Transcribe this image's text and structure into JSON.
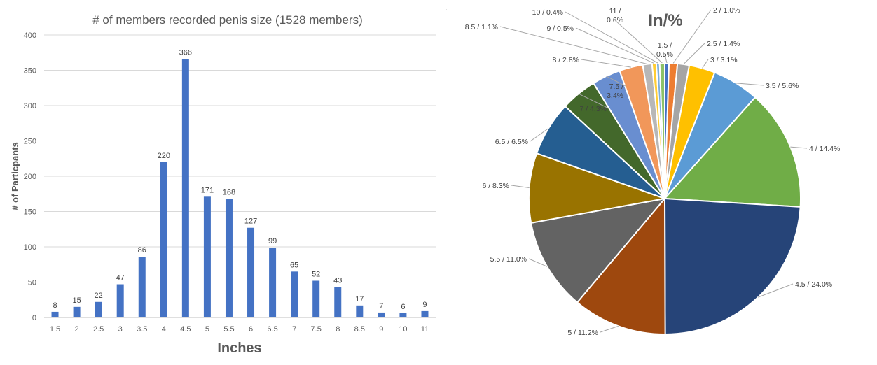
{
  "chart_data": [
    {
      "type": "bar",
      "title": "# of members recorded penis size (1528 members)",
      "xlabel": "Inches",
      "ylabel": "# of Particpants",
      "ylim": [
        0,
        400
      ],
      "yticks": [
        0,
        50,
        100,
        150,
        200,
        250,
        300,
        350,
        400
      ],
      "grid": true,
      "bar_color": "#4472c4",
      "categories": [
        "1.5",
        "2",
        "2.5",
        "3",
        "3.5",
        "4",
        "4.5",
        "5",
        "5.5",
        "6",
        "6.5",
        "7",
        "7.5",
        "8",
        "8.5",
        "9",
        "10",
        "11"
      ],
      "values": [
        8,
        15,
        22,
        47,
        86,
        220,
        366,
        171,
        168,
        127,
        99,
        65,
        52,
        43,
        17,
        7,
        6,
        9
      ],
      "data_labels": true
    },
    {
      "type": "pie",
      "title": "In/%",
      "categories": [
        "1.5",
        "2",
        "2.5",
        "3",
        "3.5",
        "4",
        "4.5",
        "5",
        "5.5",
        "6",
        "6.5",
        "7",
        "7.5",
        "8",
        "8.5",
        "9",
        "10",
        "11"
      ],
      "values": [
        0.5,
        1.0,
        1.4,
        3.1,
        5.6,
        14.4,
        24.0,
        11.2,
        11.0,
        8.3,
        6.5,
        4.3,
        3.4,
        2.8,
        1.1,
        0.5,
        0.4,
        0.6
      ],
      "labels": [
        "1.5 / 0.5%",
        "2 / 1.0%",
        "2.5 / 1.4%",
        "3 / 3.1%",
        "3.5 / 5.6%",
        "4 / 14.4%",
        "4.5 / 24.0%",
        "5 / 11.2%",
        "5.5 / 11.0%",
        "6 / 8.3%",
        "6.5 / 6.5%",
        "7 / 4.3%",
        "7.5 / 3.4%",
        "8 / 2.8%",
        "8.5 / 1.1%",
        "9 / 0.5%",
        "10 / 0.4%",
        "11 / 0.6%"
      ],
      "colors": [
        "#4472c4",
        "#ed7d31",
        "#a5a5a5",
        "#ffc000",
        "#5b9bd5",
        "#70ad47",
        "#264478",
        "#9e480e",
        "#636363",
        "#997300",
        "#255e91",
        "#43682b",
        "#698ed0",
        "#f1975a",
        "#b7b7b7",
        "#ffcd33",
        "#7cafdd",
        "#8cc168"
      ],
      "legend": "none"
    }
  ]
}
